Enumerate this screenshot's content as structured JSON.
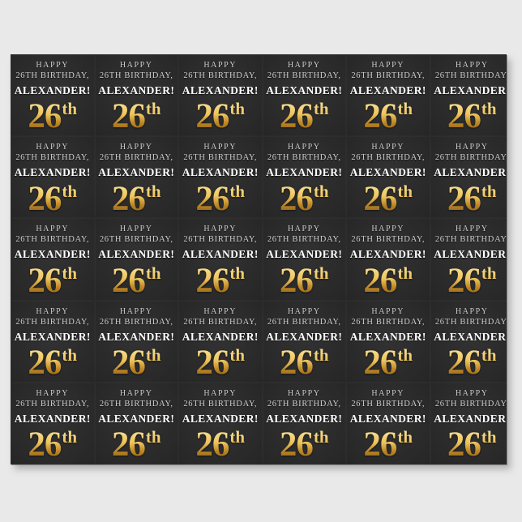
{
  "page": {
    "background": "#e9e9e9"
  },
  "paper": {
    "background": "#2b2b2b",
    "grid": {
      "rows": 5,
      "cols": 6
    }
  },
  "cell": {
    "line1": "HAPPY",
    "line2": "26TH BIRTHDAY,",
    "line3": "ALEXANDER!",
    "number": "26",
    "ordinal_suffix": "th"
  },
  "colors": {
    "page_bg": "#e9e9e9",
    "paper_bg": "#2b2b2b",
    "muted": "#cfcfcf",
    "bright": "#ffffff",
    "gold_light": "#f8e29a",
    "gold_mid": "#eec45c",
    "gold_dark": "#8a5a10"
  }
}
